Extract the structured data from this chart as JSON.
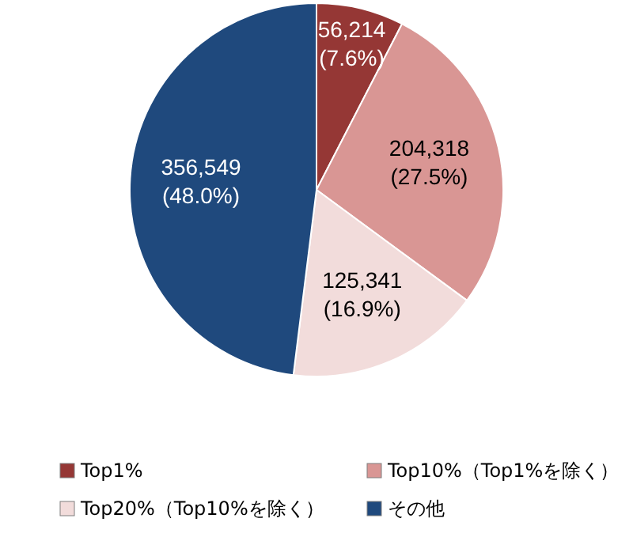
{
  "chart_data": {
    "type": "pie",
    "categories": [
      "Top1%",
      "Top10%（Top1%を除く）",
      "Top20%（Top10%を除く）",
      "その他"
    ],
    "values": [
      56214,
      204318,
      125341,
      356549
    ],
    "colors": [
      "#953735",
      "#d99694",
      "#f2dcdb",
      "#1f497d"
    ],
    "value_labels": [
      "56,214\n(7.6%)",
      "204,318\n(27.5%)",
      "125,341\n(16.9%)",
      "356,549\n(48.0%)"
    ],
    "legend": "bottom"
  }
}
